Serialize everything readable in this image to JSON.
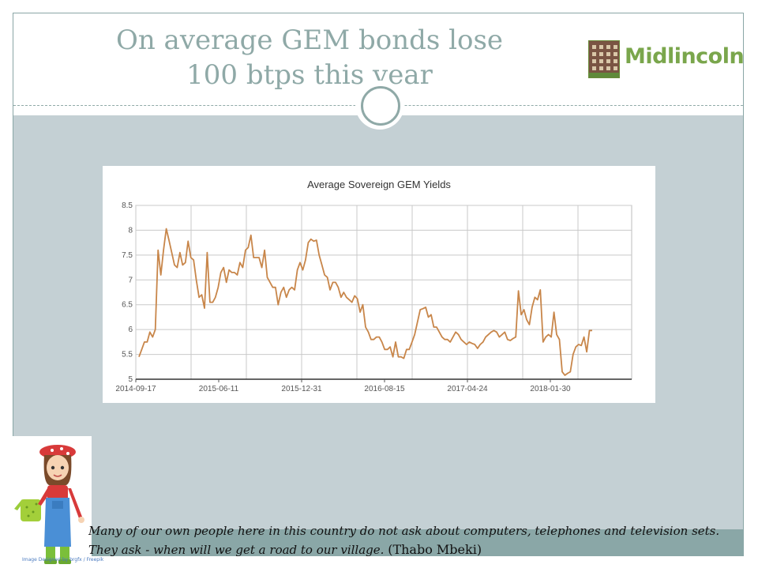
{
  "slide": {
    "title_line1": "On average GEM bonds lose",
    "title_line2": "100 btps this year",
    "logo_text": "Midlincoln",
    "quote_text": "Many of our own people here in this country do not ask about computers, telephones and television sets. They ask - when will we get a road to our village.",
    "quote_author": "(Thabo Mbeki)",
    "image_caption": "Image Designed by brgfx / Freepik"
  },
  "colors": {
    "title": "#8fa9a7",
    "content_bg": "#c4d0d4",
    "band": "#8aa7a7",
    "line": "#c8864a",
    "logo_green": "#7aa64c"
  },
  "icons": [
    "farmer-girl-illustration",
    "building-logo-icon",
    "circle-ornament-icon"
  ],
  "chart_data": {
    "type": "line",
    "title": "Average Sovereign GEM Yields",
    "xlabel": "",
    "ylabel": "",
    "ylim": [
      5,
      8.5
    ],
    "yticks": [
      "5",
      "5.5",
      "6",
      "6.5",
      "7",
      "7.5",
      "8",
      "8.5"
    ],
    "xtick_labels": [
      "2014-09-17",
      "2015-06-11",
      "2015-12-31",
      "2016-08-15",
      "2017-04-24",
      "2018-01-30"
    ],
    "grid": true,
    "legend": "none",
    "series": [
      {
        "values": [
          5.45,
          5.6,
          5.75,
          5.75,
          5.95,
          5.85,
          6.0,
          7.6,
          7.1,
          7.6,
          8.03,
          7.8,
          7.55,
          7.3,
          7.25,
          7.55,
          7.3,
          7.35,
          7.78,
          7.45,
          7.4,
          7.0,
          6.65,
          6.7,
          6.43,
          7.55,
          6.55,
          6.55,
          6.65,
          6.85,
          7.15,
          7.25,
          6.95,
          7.2,
          7.15,
          7.15,
          7.1,
          7.35,
          7.25,
          7.6,
          7.65,
          7.9,
          7.45,
          7.45,
          7.45,
          7.25,
          7.6,
          7.05,
          6.95,
          6.85,
          6.85,
          6.5,
          6.75,
          6.85,
          6.65,
          6.8,
          6.85,
          6.8,
          7.2,
          7.35,
          7.2,
          7.4,
          7.75,
          7.82,
          7.78,
          7.8,
          7.5,
          7.3,
          7.1,
          7.05,
          6.8,
          6.95,
          6.95,
          6.85,
          6.65,
          6.75,
          6.65,
          6.6,
          6.55,
          6.68,
          6.62,
          6.35,
          6.5,
          6.05,
          5.95,
          5.8,
          5.8,
          5.85,
          5.85,
          5.75,
          5.6,
          5.6,
          5.65,
          5.45,
          5.75,
          5.45,
          5.45,
          5.42,
          5.6,
          5.6,
          5.75,
          5.9,
          6.15,
          6.4,
          6.42,
          6.45,
          6.25,
          6.3,
          6.05,
          6.05,
          5.95,
          5.85,
          5.8,
          5.8,
          5.75,
          5.85,
          5.95,
          5.9,
          5.8,
          5.75,
          5.7,
          5.75,
          5.72,
          5.7,
          5.62,
          5.7,
          5.75,
          5.85,
          5.9,
          5.95,
          5.98,
          5.95,
          5.85,
          5.9,
          5.95,
          5.8,
          5.78,
          5.82,
          5.85,
          6.78,
          6.3,
          6.4,
          6.2,
          6.1,
          6.45,
          6.65,
          6.6,
          6.8,
          5.75,
          5.85,
          5.9,
          5.85,
          6.35,
          5.9,
          5.8,
          5.15,
          5.08,
          5.12,
          5.15,
          5.5,
          5.65,
          5.7,
          5.68,
          5.85,
          5.55,
          5.98,
          5.98
        ]
      }
    ]
  }
}
